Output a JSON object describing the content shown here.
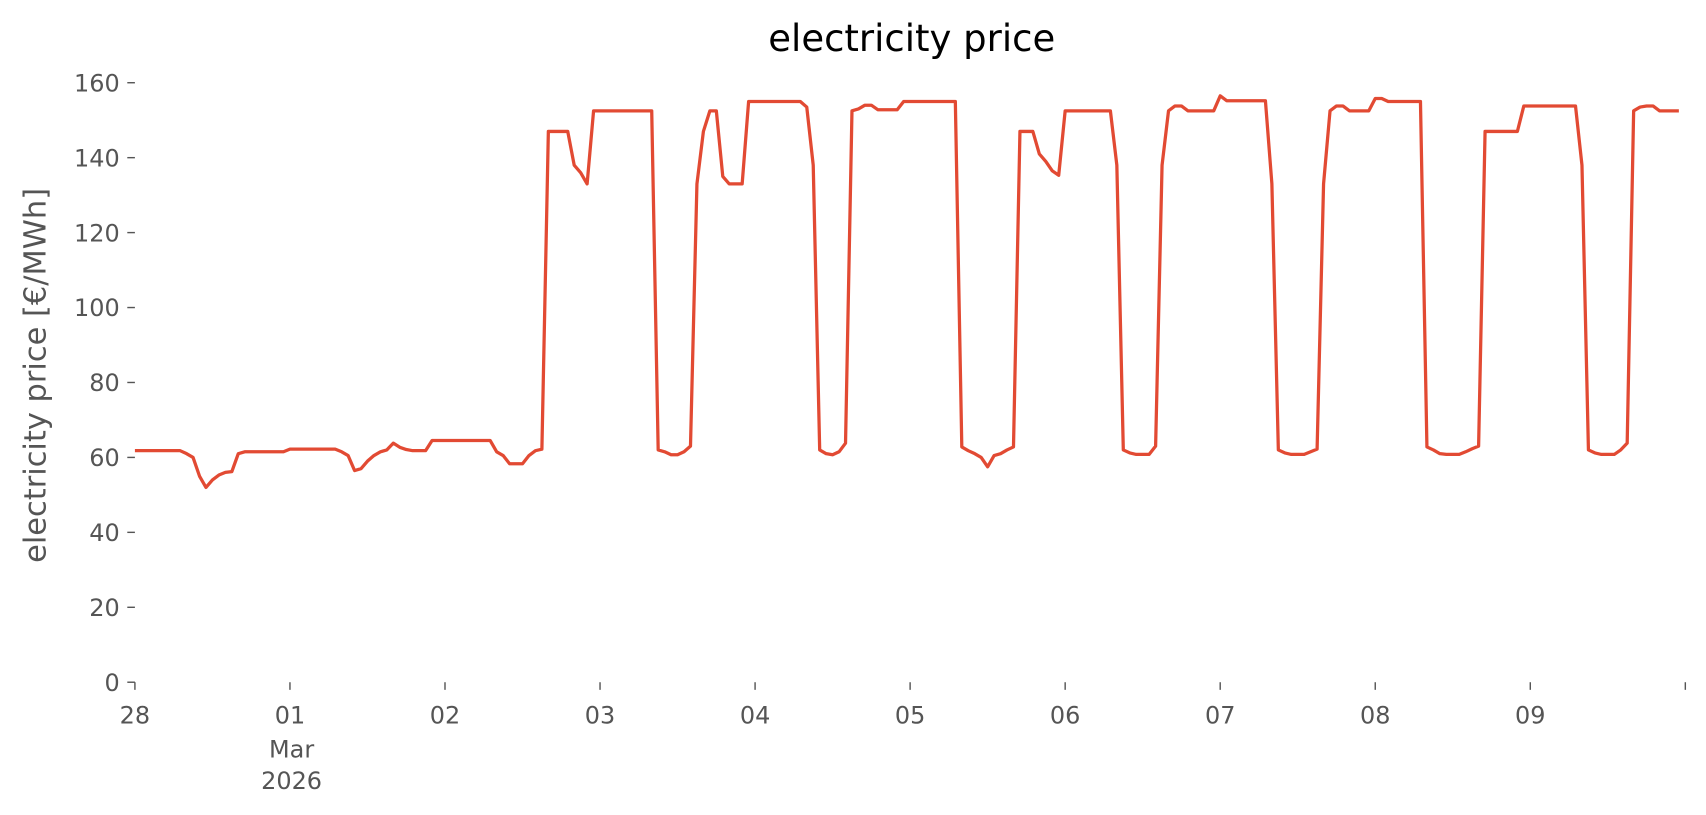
{
  "chart_data": {
    "type": "line",
    "title": "electricity price",
    "ylabel": "electricity price [€/MWh]",
    "x_month_label": "Mar",
    "x_year_label": "2026",
    "color": "#e24a33",
    "xlim": [
      "2026-02-28 00:00",
      "2026-03-10 00:00"
    ],
    "xticks": [
      {
        "value": "2026-02-28 00:00",
        "label": "28"
      },
      {
        "value": "2026-03-01 00:00",
        "label": "01"
      },
      {
        "value": "2026-03-02 00:00",
        "label": "02"
      },
      {
        "value": "2026-03-03 00:00",
        "label": "03"
      },
      {
        "value": "2026-03-04 00:00",
        "label": "04"
      },
      {
        "value": "2026-03-05 00:00",
        "label": "05"
      },
      {
        "value": "2026-03-06 00:00",
        "label": "06"
      },
      {
        "value": "2026-03-07 00:00",
        "label": "07"
      },
      {
        "value": "2026-03-08 00:00",
        "label": "08"
      },
      {
        "value": "2026-03-09 00:00",
        "label": "09"
      },
      {
        "value": "2026-03-10 00:00",
        "label": null
      }
    ],
    "ylim": [
      0,
      160
    ],
    "yticks": [
      0,
      20,
      40,
      60,
      80,
      100,
      120,
      140,
      160
    ],
    "grid": false,
    "x": [
      "2026-02-28 00:00",
      "2026-02-28 07:00",
      "2026-02-28 08:00",
      "2026-02-28 09:00",
      "2026-02-28 10:00",
      "2026-02-28 11:00",
      "2026-02-28 12:00",
      "2026-02-28 13:00",
      "2026-02-28 14:00",
      "2026-02-28 15:00",
      "2026-02-28 16:00",
      "2026-02-28 17:00",
      "2026-02-28 23:00",
      "2026-03-01 00:00",
      "2026-03-01 07:00",
      "2026-03-01 08:00",
      "2026-03-01 09:00",
      "2026-03-01 10:00",
      "2026-03-01 11:00",
      "2026-03-01 12:00",
      "2026-03-01 13:00",
      "2026-03-01 14:00",
      "2026-03-01 15:00",
      "2026-03-01 16:00",
      "2026-03-01 17:00",
      "2026-03-01 18:00",
      "2026-03-01 19:00",
      "2026-03-01 21:00",
      "2026-03-01 22:00",
      "2026-03-02 00:00",
      "2026-03-02 07:00",
      "2026-03-02 08:00",
      "2026-03-02 09:00",
      "2026-03-02 10:00",
      "2026-03-02 12:00",
      "2026-03-02 13:00",
      "2026-03-02 14:00",
      "2026-03-02 15:00",
      "2026-03-02 16:00",
      "2026-03-02 19:00",
      "2026-03-02 20:00",
      "2026-03-02 21:00",
      "2026-03-02 22:00",
      "2026-03-02 23:00",
      "2026-03-03 08:00",
      "2026-03-03 09:00",
      "2026-03-03 10:00",
      "2026-03-03 11:00",
      "2026-03-03 12:00",
      "2026-03-03 13:00",
      "2026-03-03 14:00",
      "2026-03-03 15:00",
      "2026-03-03 16:00",
      "2026-03-03 17:00",
      "2026-03-03 18:00",
      "2026-03-03 19:00",
      "2026-03-03 20:00",
      "2026-03-03 22:00",
      "2026-03-03 23:00",
      "2026-03-04 07:00",
      "2026-03-04 08:00",
      "2026-03-04 09:00",
      "2026-03-04 10:00",
      "2026-03-04 11:00",
      "2026-03-04 12:00",
      "2026-03-04 13:00",
      "2026-03-04 14:00",
      "2026-03-04 15:00",
      "2026-03-04 16:00",
      "2026-03-04 17:00",
      "2026-03-04 18:00",
      "2026-03-04 19:00",
      "2026-03-04 22:00",
      "2026-03-04 23:00",
      "2026-03-05 07:00",
      "2026-03-05 08:00",
      "2026-03-05 09:00",
      "2026-03-05 10:00",
      "2026-03-05 11:00",
      "2026-03-05 12:00",
      "2026-03-05 13:00",
      "2026-03-05 14:00",
      "2026-03-05 15:00",
      "2026-03-05 16:00",
      "2026-03-05 17:00",
      "2026-03-05 19:00",
      "2026-03-05 20:00",
      "2026-03-05 21:00",
      "2026-03-05 22:00",
      "2026-03-05 23:00",
      "2026-03-06 00:00",
      "2026-03-06 07:00",
      "2026-03-06 08:00",
      "2026-03-06 09:00",
      "2026-03-06 10:00",
      "2026-03-06 11:00",
      "2026-03-06 13:00",
      "2026-03-06 14:00",
      "2026-03-06 15:00",
      "2026-03-06 16:00",
      "2026-03-06 17:00",
      "2026-03-06 18:00",
      "2026-03-06 19:00",
      "2026-03-06 23:00",
      "2026-03-07 00:00",
      "2026-03-07 01:00",
      "2026-03-07 07:00",
      "2026-03-07 08:00",
      "2026-03-07 09:00",
      "2026-03-07 10:00",
      "2026-03-07 11:00",
      "2026-03-07 13:00",
      "2026-03-07 14:00",
      "2026-03-07 15:00",
      "2026-03-07 16:00",
      "2026-03-07 17:00",
      "2026-03-07 18:00",
      "2026-03-07 19:00",
      "2026-03-07 20:00",
      "2026-03-07 23:00",
      "2026-03-08 00:00",
      "2026-03-08 01:00",
      "2026-03-08 02:00",
      "2026-03-08 07:00",
      "2026-03-08 08:00",
      "2026-03-08 09:00",
      "2026-03-08 10:00",
      "2026-03-08 11:00",
      "2026-03-08 13:00",
      "2026-03-08 14:00",
      "2026-03-08 15:00",
      "2026-03-08 16:00",
      "2026-03-08 17:00",
      "2026-03-08 22:00",
      "2026-03-08 23:00",
      "2026-03-09 07:00",
      "2026-03-09 08:00",
      "2026-03-09 09:00",
      "2026-03-09 10:00",
      "2026-03-09 11:00",
      "2026-03-09 13:00",
      "2026-03-09 14:00",
      "2026-03-09 15:00",
      "2026-03-09 16:00",
      "2026-03-09 17:00",
      "2026-03-09 18:00",
      "2026-03-09 19:00",
      "2026-03-09 20:00",
      "2026-03-09 23:00"
    ],
    "values": [
      61.8,
      61.8,
      61,
      60,
      55,
      52,
      54,
      55.3,
      56,
      56.2,
      61,
      61.5,
      61.5,
      62.2,
      62.2,
      61.5,
      60.5,
      56.5,
      57,
      59,
      60.5,
      61.5,
      62,
      63.8,
      62.7,
      62.1,
      61.8,
      61.8,
      64.5,
      64.5,
      64.5,
      61.5,
      60.5,
      58.3,
      58.3,
      60.5,
      61.8,
      62.2,
      147,
      147,
      138,
      136,
      133,
      152.5,
      152.5,
      62,
      61.5,
      60.7,
      60.7,
      61.5,
      63,
      133,
      147,
      152.5,
      152.5,
      135,
      133,
      133,
      155,
      155,
      153.5,
      138,
      62,
      61,
      60.7,
      61.5,
      63.8,
      152.5,
      153,
      154,
      154,
      152.8,
      152.8,
      155,
      155,
      62.8,
      61.8,
      61,
      60,
      57.5,
      60.5,
      61,
      62,
      62.8,
      147,
      147,
      141,
      139,
      136.5,
      135.3,
      152.5,
      152.5,
      138,
      62,
      61.2,
      60.8,
      60.8,
      63,
      138,
      152.5,
      153.8,
      153.8,
      152.5,
      152.5,
      156.5,
      155.2,
      155.2,
      133,
      62,
      61.2,
      60.8,
      60.8,
      61.5,
      62.2,
      133,
      152.5,
      153.8,
      153.8,
      152.5,
      152.5,
      155.8,
      155.8,
      155,
      155,
      62.8,
      62,
      61,
      60.8,
      60.8,
      61.5,
      62.3,
      63,
      147,
      147,
      153.8,
      153.8,
      138,
      62,
      61.2,
      60.8,
      60.8,
      62,
      63.8,
      152.5,
      153.5,
      153.8,
      153.8,
      152.5,
      152.5
    ]
  }
}
